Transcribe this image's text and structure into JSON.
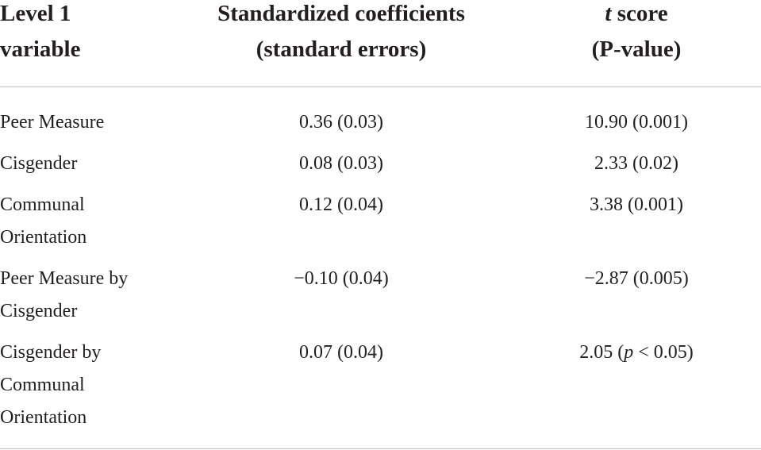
{
  "table": {
    "header": [
      {
        "lines": [
          "Level 1",
          "variable"
        ]
      },
      {
        "lines": [
          "Standardized coefficients",
          "(standard errors)"
        ]
      },
      {
        "lines": [
          [
            {
              "text": "t",
              "italic": true
            },
            {
              "text": " score"
            }
          ],
          "(P-value)"
        ]
      }
    ],
    "rows": [
      [
        "Peer Measure",
        "0.36 (0.03)",
        "10.90 (0.001)"
      ],
      [
        "Cisgender",
        "0.08 (0.03)",
        "2.33 (0.02)"
      ],
      [
        "Communal Orientation",
        "0.12 (0.04)",
        "3.38 (0.001)"
      ],
      [
        "Peer Measure by Cisgender",
        "−0.10 (0.04)",
        "−2.87 (0.005)"
      ],
      [
        "Cisgender by Communal Orientation",
        "0.07 (0.04)",
        [
          {
            "text": "2.05 ("
          },
          {
            "text": "p",
            "italic": true
          },
          {
            "text": " < 0.05)"
          }
        ]
      ]
    ]
  }
}
